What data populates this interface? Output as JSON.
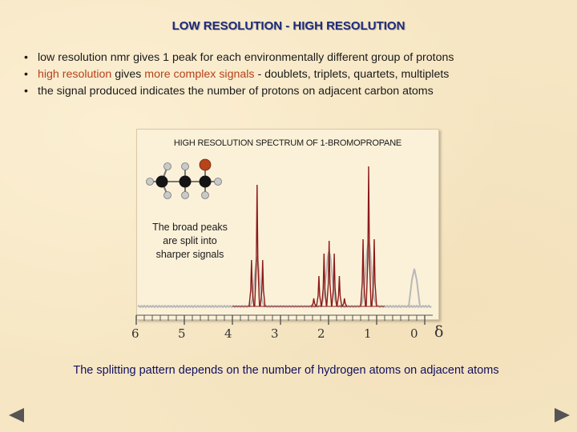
{
  "slide": {
    "title": "LOW RESOLUTION - HIGH RESOLUTION",
    "bullets": {
      "b1": "low resolution nmr gives 1 peak for each environmentally different group of protons",
      "b2_part1": "high resolution",
      "b2_part2": " gives ",
      "b2_part3": "more complex signals",
      "b2_part4": " - doublets, triplets, quartets, multiplets",
      "b3": "the signal produced indicates the number of protons on adjacent carbon atoms"
    },
    "footer": "The splitting pattern depends on the number of hydrogen atoms on adjacent atoms"
  },
  "figure": {
    "title": "HIGH RESOLUTION SPECTRUM OF 1-BROMOPROPANE",
    "callout": "The broad peaks are split into sharper signals",
    "axis_ticks": [
      "6",
      "5",
      "4",
      "3",
      "2",
      "1",
      "0"
    ],
    "axis_symbol": "δ",
    "colors": {
      "low_res": "#b8b8b8",
      "high_res": "#8b1a1a",
      "highlight_text": "#b5421a",
      "title_text": "#1d2a7a"
    }
  },
  "navigation": {
    "prev_icon": "triangle-left-icon",
    "next_icon": "triangle-right-icon"
  }
}
